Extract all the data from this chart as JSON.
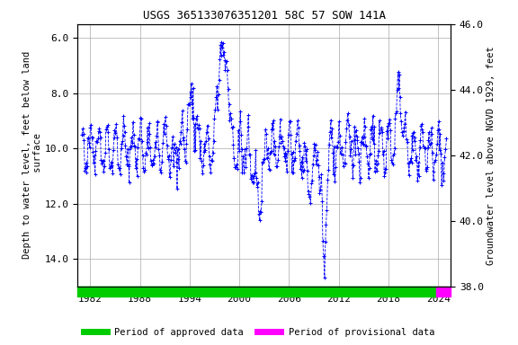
{
  "title": "USGS 365133076351201 58C 57 SOW 141A",
  "ylabel_left": "Depth to water level, feet below land\n surface",
  "ylabel_right": "Groundwater level above NGVD 1929, feet",
  "ylim_left": [
    5.5,
    15.0
  ],
  "ylim_right_top": 46.0,
  "ylim_right_bottom": 38.0,
  "xlim": [
    1980.5,
    2025.5
  ],
  "xticks": [
    1982,
    1988,
    1994,
    2000,
    2006,
    2012,
    2018,
    2024
  ],
  "yticks_left": [
    6.0,
    8.0,
    10.0,
    12.0,
    14.0
  ],
  "yticks_right": [
    46.0,
    44.0,
    42.0,
    40.0,
    38.0
  ],
  "line_color": "#0000FF",
  "marker": "+",
  "linestyle": "--",
  "bar_approved_color": "#00CC00",
  "bar_provisional_color": "#FF00FF",
  "approved_end_year": 2023.8,
  "provisional_start_year": 2023.8,
  "legend_approved": "Period of approved data",
  "legend_provisional": "Period of provisional data",
  "background_color": "#FFFFFF",
  "grid_color": "#AAAAAA",
  "title_fontsize": 9,
  "label_fontsize": 7.5,
  "tick_fontsize": 8,
  "ref_level": 52.0,
  "seed": 42
}
